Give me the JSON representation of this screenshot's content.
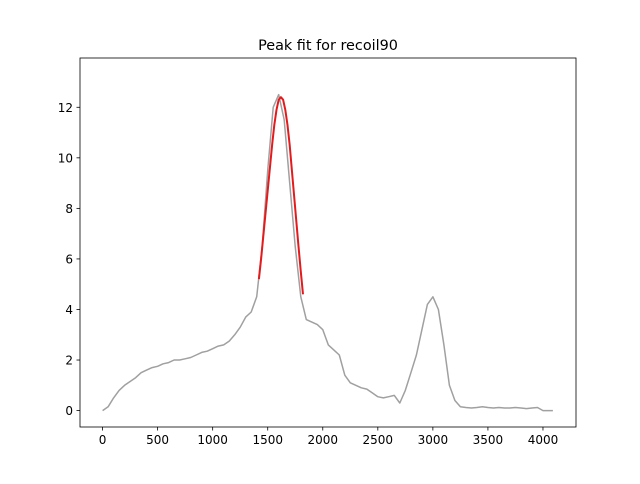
{
  "chart_data": {
    "type": "line",
    "title": "Peak fit for recoil90",
    "xlabel": "",
    "ylabel": "",
    "xlim": [
      -205,
      4300
    ],
    "ylim": [
      -0.65,
      13.95
    ],
    "x_ticks": [
      0,
      500,
      1000,
      1500,
      2000,
      2500,
      3000,
      3500,
      4000
    ],
    "y_ticks": [
      0,
      2,
      4,
      6,
      8,
      10,
      12
    ],
    "x_tick_labels": [
      "0",
      "500",
      "1000",
      "1500",
      "2000",
      "2500",
      "3000",
      "3500",
      "4000"
    ],
    "y_tick_labels": [
      "0",
      "2",
      "4",
      "6",
      "8",
      "10",
      "12"
    ],
    "grid": false,
    "legend": "none",
    "series": [
      {
        "role": "spectrum",
        "color": "#a0a0a0",
        "x": [
          0,
          50,
          100,
          150,
          200,
          250,
          300,
          350,
          400,
          450,
          500,
          550,
          600,
          650,
          700,
          750,
          800,
          850,
          900,
          950,
          1000,
          1050,
          1100,
          1150,
          1200,
          1250,
          1300,
          1350,
          1400,
          1450,
          1500,
          1550,
          1600,
          1650,
          1700,
          1750,
          1800,
          1850,
          1900,
          1950,
          2000,
          2050,
          2100,
          2150,
          2200,
          2250,
          2300,
          2350,
          2400,
          2450,
          2500,
          2550,
          2600,
          2650,
          2700,
          2750,
          2800,
          2850,
          2900,
          2950,
          3000,
          3050,
          3100,
          3150,
          3200,
          3250,
          3300,
          3350,
          3400,
          3450,
          3500,
          3550,
          3600,
          3650,
          3700,
          3750,
          3800,
          3850,
          3900,
          3950,
          4000,
          4050,
          4090
        ],
        "values": [
          0.0,
          0.15,
          0.5,
          0.8,
          1.0,
          1.15,
          1.3,
          1.5,
          1.6,
          1.7,
          1.75,
          1.85,
          1.9,
          2.0,
          2.0,
          2.05,
          2.1,
          2.2,
          2.3,
          2.35,
          2.45,
          2.55,
          2.6,
          2.75,
          3.0,
          3.3,
          3.7,
          3.9,
          4.5,
          6.5,
          9.5,
          12.0,
          12.5,
          11.5,
          9.0,
          6.5,
          4.5,
          3.6,
          3.5,
          3.4,
          3.2,
          2.6,
          2.4,
          2.2,
          1.4,
          1.1,
          1.0,
          0.9,
          0.85,
          0.7,
          0.55,
          0.5,
          0.55,
          0.6,
          0.3,
          0.8,
          1.5,
          2.2,
          3.2,
          4.2,
          4.5,
          4.0,
          2.6,
          1.0,
          0.4,
          0.15,
          0.12,
          0.1,
          0.12,
          0.15,
          0.12,
          0.1,
          0.12,
          0.1,
          0.1,
          0.12,
          0.1,
          0.08,
          0.1,
          0.12,
          0.0,
          0.0,
          0.0
        ]
      },
      {
        "role": "gaussian-fit",
        "color": "#e41a1c",
        "x": [
          1420,
          1440,
          1460,
          1480,
          1500,
          1520,
          1540,
          1560,
          1580,
          1600,
          1620,
          1640,
          1660,
          1680,
          1700,
          1720,
          1740,
          1760,
          1780,
          1800,
          1820
        ],
        "values": [
          5.2,
          6.0,
          6.9,
          7.8,
          8.7,
          9.6,
          10.5,
          11.3,
          11.9,
          12.3,
          12.4,
          12.3,
          11.9,
          11.3,
          10.5,
          9.5,
          8.5,
          7.5,
          6.5,
          5.5,
          4.6
        ]
      }
    ]
  }
}
